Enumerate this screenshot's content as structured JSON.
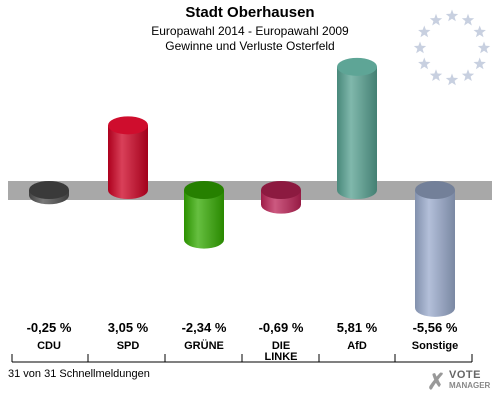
{
  "header": {
    "title": "Stadt Oberhausen",
    "subtitle1": "Europawahl 2014 - Europawahl 2009",
    "subtitle2": "Gewinne und Verluste Osterfeld"
  },
  "footer": {
    "text": "31 von 31 Schnellmeldungen"
  },
  "brand": {
    "line1": "VOTE",
    "line2": "MANAGER"
  },
  "chart_data": {
    "type": "bar",
    "categories": [
      "CDU",
      "SPD",
      "GRÜNE",
      "DIE LINKE",
      "AfD",
      "Sonstige"
    ],
    "values": [
      -0.25,
      3.05,
      -2.34,
      -0.69,
      5.81,
      -5.56
    ],
    "value_labels": [
      "-0,25 %",
      "3,05 %",
      "-2,34 %",
      "-0,69 %",
      "5,81 %",
      "-5,56 %"
    ],
    "colors": [
      "#4d4d4d",
      "#cc0022",
      "#33aa00",
      "#bb2255",
      "#55a090",
      "#99aacc"
    ],
    "baseline_color": "#a8a8a8"
  }
}
